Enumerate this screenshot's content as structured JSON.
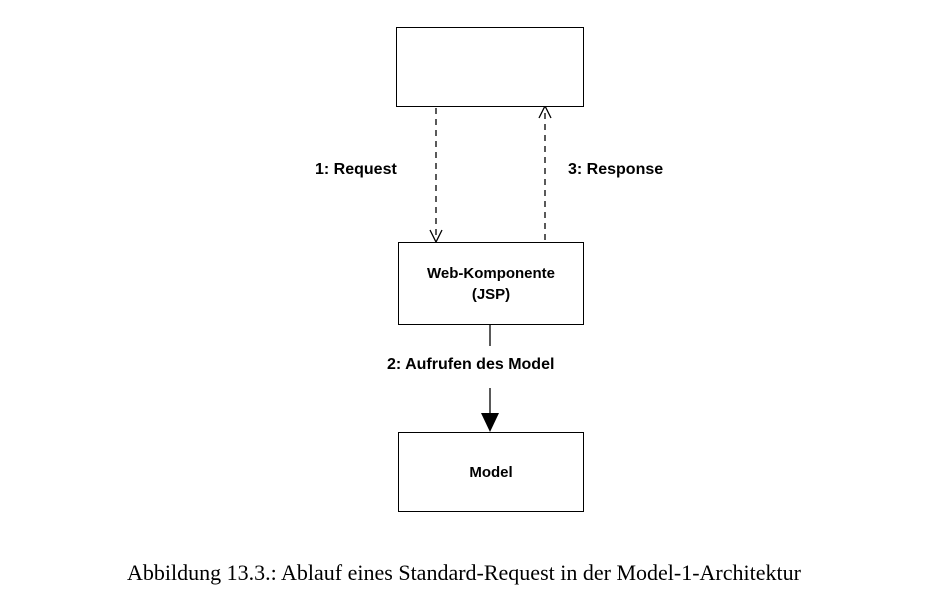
{
  "diagram": {
    "nodes": {
      "client": {
        "label": ""
      },
      "web_component": {
        "label": "Web-Komponente\n(JSP)"
      },
      "model": {
        "label": "Model"
      }
    },
    "edges": {
      "request": {
        "label": "1: Request",
        "from": "client",
        "to": "web_component",
        "style": "dashed",
        "arrow": "open"
      },
      "call_model": {
        "label": "2: Aufrufen des Model",
        "from": "web_component",
        "to": "model",
        "style": "solid",
        "arrow": "filled"
      },
      "response": {
        "label": "3: Response",
        "from": "web_component",
        "to": "client",
        "style": "dashed",
        "arrow": "open"
      }
    },
    "colors": {
      "stroke": "#000000",
      "background": "#ffffff"
    }
  },
  "caption": "Abbildung 13.3.: Ablauf eines Standard-Request in der Model-1-Architektur"
}
